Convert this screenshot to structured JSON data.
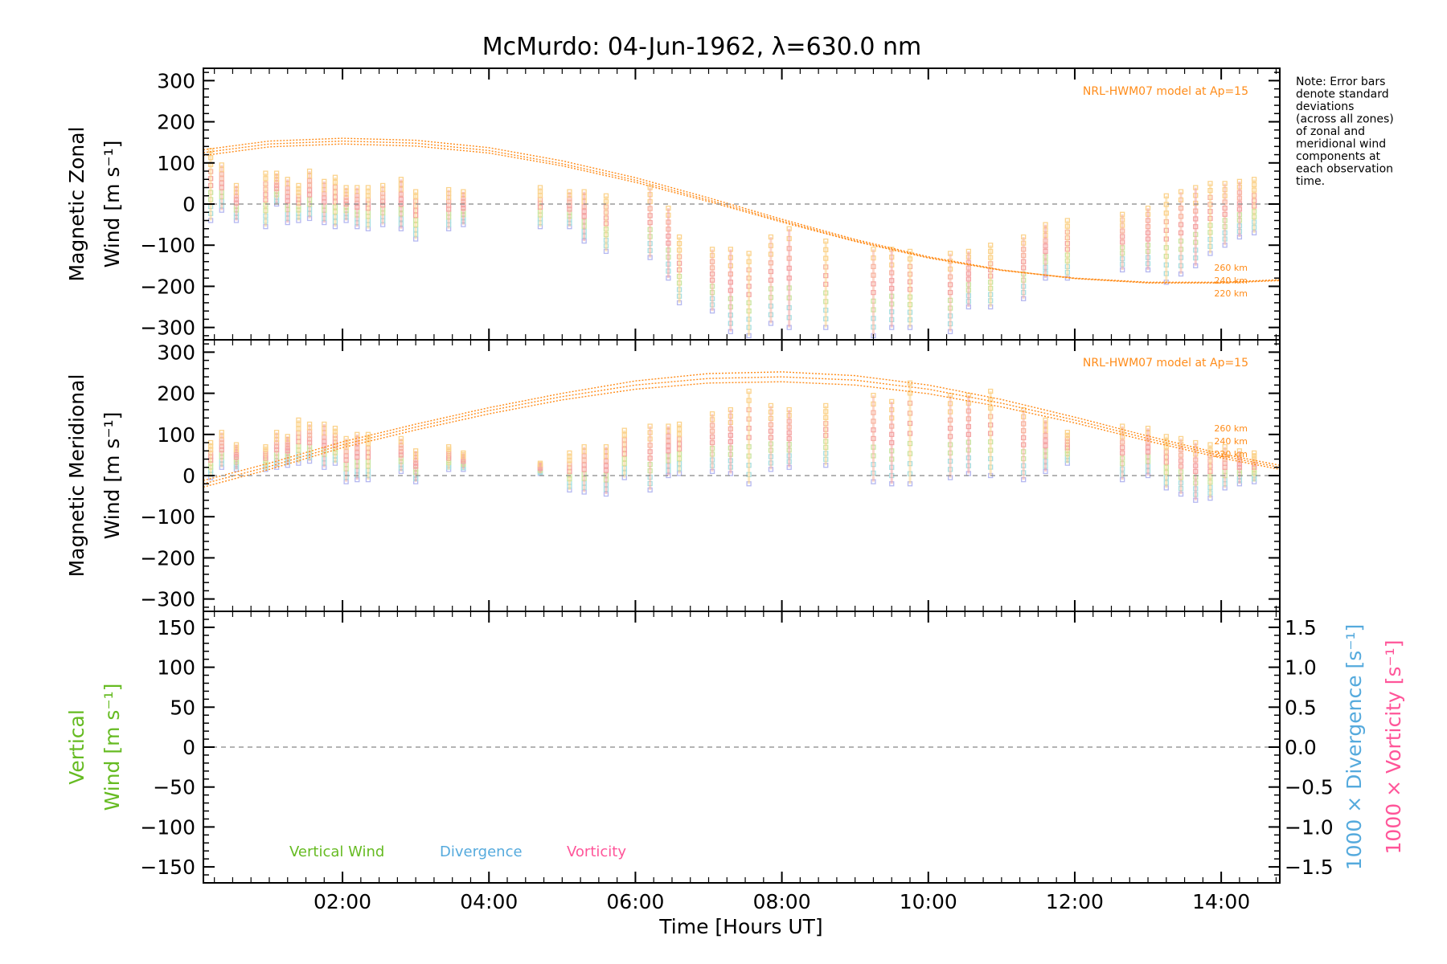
{
  "title": "McMurdo: 04-Jun-1962, λ=630.0 nm",
  "note_lines": [
    "Note: Error bars",
    "denote standard",
    "deviations",
    "(across all zones)",
    "of zonal and",
    "meridional wind",
    "components at",
    "each observation",
    "time."
  ],
  "xaxis": {
    "label": "Time [Hours UT]",
    "ticks": [
      "02:00",
      "04:00",
      "06:00",
      "08:00",
      "10:00",
      "12:00",
      "14:00"
    ],
    "tick_values": [
      2,
      4,
      6,
      8,
      10,
      12,
      14
    ],
    "range": [
      0.1,
      14.8
    ]
  },
  "colors": {
    "model": "#ff8c1a",
    "vertical": "#66bb22",
    "divergence": "#55aadd",
    "vorticity": "#ff5599",
    "zero_line": "#888888"
  },
  "panels": {
    "zonal": {
      "label_line1": "Magnetic Zonal",
      "label_line2": "Wind [m s⁻¹]",
      "yticks": [
        "300",
        "200",
        "100",
        "0",
        "−100",
        "−200",
        "−300"
      ],
      "ylim": [
        -330,
        330
      ],
      "model_label": "NRL-HWM07 model at Ap=15",
      "alt_labels": [
        "260 km",
        "240 km",
        "220 km"
      ]
    },
    "meridional": {
      "label_line1": "Magnetic Meridional",
      "label_line2": "Wind [m s⁻¹]",
      "yticks": [
        "300",
        "200",
        "100",
        "0",
        "−100",
        "−200",
        "−300"
      ],
      "ylim": [
        -330,
        330
      ],
      "model_label": "NRL-HWM07 model at Ap=15",
      "alt_labels": [
        "260 km",
        "240 km",
        "220 km"
      ]
    },
    "vertical": {
      "label_line1": "Vertical",
      "label_line2": "Wind [m s⁻¹]",
      "yticks": [
        "150",
        "100",
        "50",
        "0",
        "−50",
        "−100",
        "−150"
      ],
      "ylim": [
        -170,
        170
      ],
      "right_ticks": [
        "1.5",
        "1.0",
        "0.5",
        "0.0",
        "−0.5",
        "−1.0",
        "−1.5"
      ],
      "right_label_divergence": "1000 × Divergence [s⁻¹]",
      "right_label_vorticity": "1000 × Vorticity [s⁻¹]",
      "legend": [
        "Vertical Wind",
        "Divergence",
        "Vorticity"
      ]
    }
  },
  "chart_data": [
    {
      "type": "scatter",
      "title": "McMurdo: 04-Jun-1962, λ=630.0 nm",
      "ylabel": "Magnetic Zonal Wind [m s⁻¹]",
      "xlabel": "",
      "ylim": [
        -330,
        330
      ],
      "model": {
        "name": "NRL-HWM07 model at Ap=15",
        "series": [
          {
            "name": "260 km",
            "x": [
              0.1,
              1,
              2,
              3,
              4,
              5,
              6,
              7,
              8,
              9,
              10,
              11,
              12,
              13,
              14,
              14.8
            ],
            "y": [
              132,
              153,
              160,
              155,
              137,
              105,
              64,
              15,
              -37,
              -86,
              -128,
              -160,
              -181,
              -192,
              -192,
              -186
            ]
          },
          {
            "name": "240 km",
            "x": [
              0.1,
              1,
              2,
              3,
              4,
              5,
              6,
              7,
              8,
              9,
              10,
              11,
              12,
              13,
              14,
              14.8
            ],
            "y": [
              125,
              146,
              153,
              148,
              130,
              98,
              58,
              10,
              -41,
              -89,
              -130,
              -161,
              -181,
              -191,
              -191,
              -185
            ]
          },
          {
            "name": "220 km",
            "x": [
              0.1,
              1,
              2,
              3,
              4,
              5,
              6,
              7,
              8,
              9,
              10,
              11,
              12,
              13,
              14,
              14.8
            ],
            "y": [
              118,
              139,
              146,
              141,
              124,
              93,
              53,
              6,
              -44,
              -91,
              -131,
              -161,
              -180,
              -190,
              -190,
              -184
            ]
          }
        ]
      },
      "observations": [
        {
          "x": 0.2,
          "low": -40,
          "high": 130
        },
        {
          "x": 0.35,
          "low": -15,
          "high": 95
        },
        {
          "x": 0.55,
          "low": -40,
          "high": 45
        },
        {
          "x": 0.95,
          "low": -55,
          "high": 75
        },
        {
          "x": 1.1,
          "low": 0,
          "high": 75
        },
        {
          "x": 1.25,
          "low": -45,
          "high": 60
        },
        {
          "x": 1.4,
          "low": -40,
          "high": 45
        },
        {
          "x": 1.55,
          "low": -35,
          "high": 80
        },
        {
          "x": 1.75,
          "low": -45,
          "high": 55
        },
        {
          "x": 1.9,
          "low": -55,
          "high": 65
        },
        {
          "x": 2.05,
          "low": -40,
          "high": 40
        },
        {
          "x": 2.2,
          "low": -55,
          "high": 40
        },
        {
          "x": 2.35,
          "low": -60,
          "high": 40
        },
        {
          "x": 2.55,
          "low": -50,
          "high": 45
        },
        {
          "x": 2.8,
          "low": -60,
          "high": 60
        },
        {
          "x": 3.0,
          "low": -85,
          "high": 30
        },
        {
          "x": 3.45,
          "low": -60,
          "high": 35
        },
        {
          "x": 3.65,
          "low": -50,
          "high": 30
        },
        {
          "x": 4.7,
          "low": -55,
          "high": 40
        },
        {
          "x": 5.1,
          "low": -55,
          "high": 30
        },
        {
          "x": 5.3,
          "low": -90,
          "high": 30
        },
        {
          "x": 5.6,
          "low": -115,
          "high": 20
        },
        {
          "x": 6.2,
          "low": -130,
          "high": 40
        },
        {
          "x": 6.45,
          "low": -180,
          "high": -10
        },
        {
          "x": 6.6,
          "low": -240,
          "high": -80
        },
        {
          "x": 7.05,
          "low": -260,
          "high": -110
        },
        {
          "x": 7.3,
          "low": -310,
          "high": -110
        },
        {
          "x": 7.55,
          "low": -320,
          "high": -120
        },
        {
          "x": 7.85,
          "low": -290,
          "high": -80
        },
        {
          "x": 8.1,
          "low": -300,
          "high": -60
        },
        {
          "x": 8.6,
          "low": -300,
          "high": -90
        },
        {
          "x": 9.25,
          "low": -320,
          "high": -110
        },
        {
          "x": 9.5,
          "low": -300,
          "high": -110
        },
        {
          "x": 9.75,
          "low": -300,
          "high": -115
        },
        {
          "x": 10.3,
          "low": -310,
          "high": -120
        },
        {
          "x": 10.55,
          "low": -250,
          "high": -115
        },
        {
          "x": 10.85,
          "low": -250,
          "high": -100
        },
        {
          "x": 11.3,
          "low": -230,
          "high": -80
        },
        {
          "x": 11.6,
          "low": -180,
          "high": -50
        },
        {
          "x": 11.9,
          "low": -180,
          "high": -40
        },
        {
          "x": 12.65,
          "low": -160,
          "high": -25
        },
        {
          "x": 13.0,
          "low": -160,
          "high": -10
        },
        {
          "x": 13.25,
          "low": -190,
          "high": 20
        },
        {
          "x": 13.45,
          "low": -170,
          "high": 30
        },
        {
          "x": 13.65,
          "low": -150,
          "high": 40
        },
        {
          "x": 13.85,
          "low": -120,
          "high": 50
        },
        {
          "x": 14.05,
          "low": -100,
          "high": 50
        },
        {
          "x": 14.25,
          "low": -80,
          "high": 55
        },
        {
          "x": 14.45,
          "low": -70,
          "high": 60
        }
      ]
    },
    {
      "type": "scatter",
      "title": "",
      "ylabel": "Magnetic Meridional Wind [m s⁻¹]",
      "xlabel": "",
      "ylim": [
        -330,
        330
      ],
      "model": {
        "name": "NRL-HWM07 model at Ap=15",
        "series": [
          {
            "name": "260 km",
            "x": [
              0.1,
              1,
              2,
              3,
              4,
              5,
              6,
              7,
              8,
              9,
              10,
              11,
              12,
              13,
              14,
              14.8
            ],
            "y": [
              -12,
              30,
              82,
              125,
              165,
              200,
              230,
              248,
              252,
              243,
              220,
              185,
              142,
              96,
              53,
              25
            ]
          },
          {
            "name": "240 km",
            "x": [
              0.1,
              1,
              2,
              3,
              4,
              5,
              6,
              7,
              8,
              9,
              10,
              11,
              12,
              13,
              14,
              14.8
            ],
            "y": [
              -20,
              22,
              75,
              118,
              158,
              192,
              220,
              236,
              240,
              232,
              210,
              176,
              135,
              90,
              48,
              20
            ]
          },
          {
            "name": "220 km",
            "x": [
              0.1,
              1,
              2,
              3,
              4,
              5,
              6,
              7,
              8,
              9,
              10,
              11,
              12,
              13,
              14,
              14.8
            ],
            "y": [
              -28,
              15,
              68,
              111,
              150,
              184,
              210,
              225,
              228,
              220,
              199,
              167,
              128,
              84,
              43,
              15
            ]
          }
        ]
      },
      "observations": [
        {
          "x": 0.2,
          "low": -5,
          "high": 80
        },
        {
          "x": 0.35,
          "low": 20,
          "high": 105
        },
        {
          "x": 0.55,
          "low": 15,
          "high": 75
        },
        {
          "x": 0.95,
          "low": 15,
          "high": 70
        },
        {
          "x": 1.1,
          "low": 20,
          "high": 105
        },
        {
          "x": 1.25,
          "low": 25,
          "high": 95
        },
        {
          "x": 1.4,
          "low": 30,
          "high": 135
        },
        {
          "x": 1.55,
          "low": 35,
          "high": 125
        },
        {
          "x": 1.75,
          "low": 20,
          "high": 125
        },
        {
          "x": 1.9,
          "low": 30,
          "high": 115
        },
        {
          "x": 2.05,
          "low": -15,
          "high": 90
        },
        {
          "x": 2.2,
          "low": -10,
          "high": 100
        },
        {
          "x": 2.35,
          "low": -10,
          "high": 100
        },
        {
          "x": 2.8,
          "low": 10,
          "high": 90
        },
        {
          "x": 3.0,
          "low": -15,
          "high": 60
        },
        {
          "x": 3.45,
          "low": 15,
          "high": 70
        },
        {
          "x": 3.65,
          "low": 15,
          "high": 55
        },
        {
          "x": 4.7,
          "low": 5,
          "high": 30
        },
        {
          "x": 5.1,
          "low": -35,
          "high": 55
        },
        {
          "x": 5.3,
          "low": -40,
          "high": 70
        },
        {
          "x": 5.6,
          "low": -45,
          "high": 70
        },
        {
          "x": 5.85,
          "low": -5,
          "high": 110
        },
        {
          "x": 6.2,
          "low": -35,
          "high": 120
        },
        {
          "x": 6.45,
          "low": 0,
          "high": 120
        },
        {
          "x": 6.6,
          "low": 5,
          "high": 125
        },
        {
          "x": 7.05,
          "low": 10,
          "high": 150
        },
        {
          "x": 7.3,
          "low": 5,
          "high": 160
        },
        {
          "x": 7.55,
          "low": -20,
          "high": 205
        },
        {
          "x": 7.85,
          "low": 15,
          "high": 170
        },
        {
          "x": 8.1,
          "low": 20,
          "high": 160
        },
        {
          "x": 8.6,
          "low": 25,
          "high": 170
        },
        {
          "x": 9.25,
          "low": -15,
          "high": 195
        },
        {
          "x": 9.5,
          "low": -20,
          "high": 180
        },
        {
          "x": 9.75,
          "low": -20,
          "high": 225
        },
        {
          "x": 10.3,
          "low": -5,
          "high": 195
        },
        {
          "x": 10.55,
          "low": 5,
          "high": 195
        },
        {
          "x": 10.85,
          "low": 0,
          "high": 205
        },
        {
          "x": 11.3,
          "low": -10,
          "high": 160
        },
        {
          "x": 11.6,
          "low": 10,
          "high": 135
        },
        {
          "x": 11.9,
          "low": 30,
          "high": 105
        },
        {
          "x": 12.65,
          "low": -10,
          "high": 120
        },
        {
          "x": 13.0,
          "low": 0,
          "high": 115
        },
        {
          "x": 13.25,
          "low": -30,
          "high": 95
        },
        {
          "x": 13.45,
          "low": -45,
          "high": 90
        },
        {
          "x": 13.65,
          "low": -60,
          "high": 80
        },
        {
          "x": 13.85,
          "low": -55,
          "high": 75
        },
        {
          "x": 14.05,
          "low": -30,
          "high": 70
        },
        {
          "x": 14.25,
          "low": -20,
          "high": 60
        },
        {
          "x": 14.45,
          "low": -15,
          "high": 55
        }
      ]
    },
    {
      "type": "scatter",
      "title": "",
      "ylabel": "Vertical Wind [m s⁻¹]",
      "xlabel": "Time [Hours UT]",
      "ylim": [
        -170,
        170
      ],
      "y2label": "1000 × Divergence [s⁻¹] / 1000 × Vorticity [s⁻¹]",
      "y2lim": [
        -1.5,
        1.5
      ],
      "series": [
        {
          "name": "Vertical Wind",
          "values": []
        },
        {
          "name": "Divergence",
          "values": []
        },
        {
          "name": "Vorticity",
          "values": []
        }
      ]
    }
  ]
}
